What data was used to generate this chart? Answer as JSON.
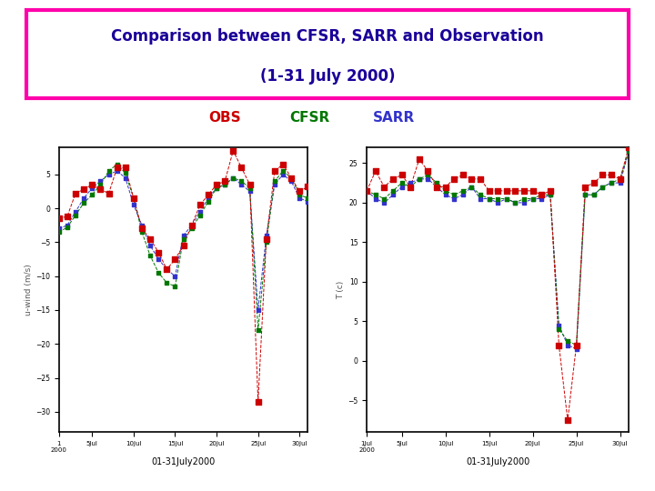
{
  "title_line1": "Comparison between CFSR, SARR and Observation",
  "title_line2": "(1-31 July 2000)",
  "title_color": "#1a0099",
  "title_box_color": "#ff00aa",
  "bg_color": "#ffffff",
  "legend_obs_color": "#cc0000",
  "legend_cfsr_color": "#007700",
  "legend_sarr_color": "#3333cc",
  "days": [
    1,
    2,
    3,
    4,
    5,
    6,
    7,
    8,
    9,
    10,
    11,
    12,
    13,
    14,
    15,
    16,
    17,
    18,
    19,
    20,
    21,
    22,
    23,
    24,
    25,
    26,
    27,
    28,
    29,
    30,
    31
  ],
  "left_ylabel": "u-wind (m/s)",
  "left_xlabel": "01-31July2000",
  "right_ylabel": "T (c)",
  "right_xlabel": "01-31July2000",
  "left_obs": [
    -1.5,
    -1.2,
    2.2,
    2.8,
    3.5,
    2.8,
    2.2,
    6.0,
    6.0,
    1.5,
    -3.0,
    -4.5,
    -6.5,
    -9.0,
    -7.5,
    -5.5,
    -2.5,
    0.5,
    2.0,
    3.5,
    4.0,
    8.5,
    6.0,
    3.5,
    -28.5,
    -4.5,
    5.5,
    6.5,
    4.5,
    2.5,
    3.2
  ],
  "left_cfsr": [
    -3.5,
    -2.8,
    -1.0,
    0.8,
    2.0,
    3.5,
    5.5,
    6.5,
    5.2,
    1.5,
    -3.5,
    -7.0,
    -9.5,
    -11.0,
    -11.5,
    -4.5,
    -3.0,
    -1.0,
    1.0,
    3.0,
    3.5,
    4.5,
    4.0,
    3.0,
    -18.0,
    -5.0,
    4.0,
    5.5,
    4.5,
    2.0,
    1.5
  ],
  "left_sarr": [
    -3.0,
    -2.5,
    -0.5,
    1.5,
    3.0,
    4.0,
    5.0,
    5.5,
    4.5,
    0.5,
    -2.5,
    -5.5,
    -7.5,
    -9.0,
    -10.0,
    -4.0,
    -2.5,
    -0.5,
    1.5,
    3.0,
    3.5,
    4.5,
    3.5,
    2.5,
    -15.0,
    -4.0,
    3.5,
    5.0,
    4.0,
    1.5,
    1.0
  ],
  "right_obs": [
    21.5,
    24.0,
    22.0,
    23.0,
    23.5,
    22.0,
    25.5,
    24.0,
    22.0,
    22.0,
    23.0,
    23.5,
    23.0,
    23.0,
    21.5,
    21.5,
    21.5,
    21.5,
    21.5,
    21.5,
    21.0,
    21.5,
    2.0,
    -7.5,
    2.0,
    22.0,
    22.5,
    23.5,
    23.5,
    23.0,
    27.0
  ],
  "right_cfsr": [
    21.5,
    21.0,
    20.5,
    21.5,
    22.5,
    22.0,
    23.0,
    23.5,
    22.5,
    21.5,
    21.0,
    21.5,
    22.0,
    21.0,
    20.5,
    20.5,
    20.5,
    20.0,
    20.5,
    20.5,
    21.0,
    21.0,
    4.0,
    2.5,
    2.0,
    21.0,
    21.0,
    22.0,
    22.5,
    23.0,
    26.5
  ],
  "right_sarr": [
    21.5,
    20.5,
    20.0,
    21.0,
    22.0,
    22.5,
    23.0,
    23.0,
    22.0,
    21.0,
    20.5,
    21.0,
    22.0,
    20.5,
    20.5,
    20.0,
    20.5,
    20.0,
    20.0,
    20.5,
    20.5,
    21.0,
    4.5,
    2.0,
    1.5,
    21.0,
    21.0,
    22.0,
    22.5,
    22.5,
    26.5
  ],
  "left_ylim": [
    -33,
    9
  ],
  "right_ylim": [
    -9,
    27
  ],
  "left_yticks": [
    -30,
    -25,
    -20,
    -15,
    -10,
    -5,
    0,
    5
  ],
  "right_yticks": [
    -5,
    0,
    5,
    10,
    15,
    20,
    25
  ],
  "left_xtick_pos": [
    1,
    5,
    10,
    15,
    20,
    25,
    30
  ],
  "left_xtick_lbl": [
    "1\n2000",
    "5Jul",
    "10Jul",
    "15Jul",
    "20Jul",
    "25Jul",
    "30Jul"
  ],
  "right_xtick_pos": [
    1,
    5,
    10,
    15,
    20,
    25,
    30
  ],
  "right_xtick_lbl": [
    "1Jul\n2000",
    "5Jul",
    "10Jul",
    "15Jul",
    "20Jul",
    "25Jul",
    "30Jul"
  ]
}
